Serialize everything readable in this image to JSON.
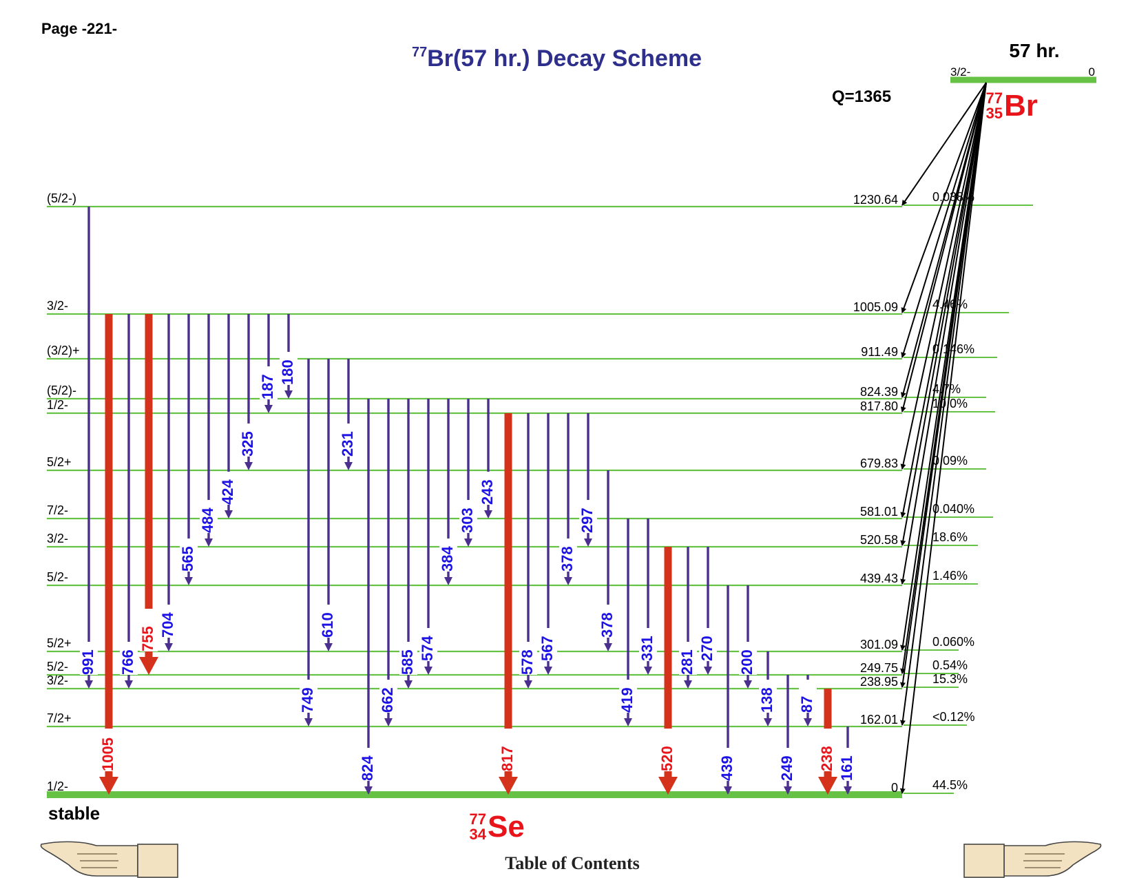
{
  "page": {
    "label": "Page -221-"
  },
  "title": {
    "mass": "77",
    "main": "Br(57 hr.) Decay Scheme"
  },
  "parent": {
    "half_life": "57 hr.",
    "spin": "3/2-",
    "energy": "0",
    "mass": "77",
    "z": "35",
    "symbol": "Br",
    "q_value": "Q=1365"
  },
  "daughter": {
    "mass": "77",
    "z": "34",
    "symbol": "Se",
    "stable_label": "stable"
  },
  "levels": [
    {
      "energy": "1230.64",
      "spin": "(5/2-)",
      "feed": "0.038%",
      "e": 1230.64
    },
    {
      "energy": "1005.09",
      "spin": "3/2-",
      "feed": "4.46%",
      "e": 1005.09
    },
    {
      "energy": "911.49",
      "spin": "(3/2)+",
      "feed": "0.146%",
      "e": 911.49
    },
    {
      "energy": "824.39",
      "spin": "(5/2)-",
      "feed": "4.7%",
      "e": 824.39
    },
    {
      "energy": "817.80",
      "spin": "1/2-",
      "feed": "10.0%",
      "e": 817.8
    },
    {
      "energy": "679.83",
      "spin": "5/2+",
      "feed": "0.09%",
      "e": 679.83
    },
    {
      "energy": "581.01",
      "spin": "7/2-",
      "feed": "0.040%",
      "e": 581.01
    },
    {
      "energy": "520.58",
      "spin": "3/2-",
      "feed": "18.6%",
      "e": 520.58
    },
    {
      "energy": "439.43",
      "spin": "5/2-",
      "feed": "1.46%",
      "e": 439.43
    },
    {
      "energy": "301.09",
      "spin": "5/2+",
      "feed": "0.060%",
      "e": 301.09
    },
    {
      "energy": "249.75",
      "spin": "5/2-",
      "feed": "0.54%",
      "e": 249.75
    },
    {
      "energy": "238.95",
      "spin": "3/2-",
      "feed": "15.3%",
      "e": 238.95
    },
    {
      "energy": "162.01",
      "spin": "7/2+",
      "feed": "<0.12%",
      "e": 162.01
    },
    {
      "energy": "0",
      "spin": "1/2-",
      "feed": "44.5%",
      "e": 0
    }
  ],
  "gammas": [
    {
      "label": "991",
      "from": 0,
      "to": 11,
      "strong": false
    },
    {
      "label": "1005",
      "from": 1,
      "to": 13,
      "strong": true
    },
    {
      "label": "766",
      "from": 1,
      "to": 11,
      "strong": false
    },
    {
      "label": "755",
      "from": 1,
      "to": 10,
      "strong": true
    },
    {
      "label": "704",
      "from": 1,
      "to": 9,
      "strong": false
    },
    {
      "label": "565",
      "from": 1,
      "to": 8,
      "strong": false
    },
    {
      "label": "484",
      "from": 1,
      "to": 7,
      "strong": false
    },
    {
      "label": "424",
      "from": 1,
      "to": 6,
      "strong": false
    },
    {
      "label": "325",
      "from": 1,
      "to": 5,
      "strong": false
    },
    {
      "label": "187",
      "from": 1,
      "to": 4,
      "strong": false
    },
    {
      "label": "180",
      "from": 1,
      "to": 3,
      "strong": false
    },
    {
      "label": "749",
      "from": 2,
      "to": 12,
      "strong": false
    },
    {
      "label": "610",
      "from": 2,
      "to": 9,
      "strong": false
    },
    {
      "label": "231",
      "from": 2,
      "to": 5,
      "strong": false
    },
    {
      "label": "824",
      "from": 3,
      "to": 13,
      "strong": false
    },
    {
      "label": "662",
      "from": 3,
      "to": 12,
      "strong": false
    },
    {
      "label": "585",
      "from": 3,
      "to": 11,
      "strong": false
    },
    {
      "label": "574",
      "from": 3,
      "to": 10,
      "strong": false
    },
    {
      "label": "384",
      "from": 3,
      "to": 8,
      "strong": false
    },
    {
      "label": "303",
      "from": 3,
      "to": 7,
      "strong": false
    },
    {
      "label": "243",
      "from": 3,
      "to": 6,
      "strong": false
    },
    {
      "label": "817",
      "from": 4,
      "to": 13,
      "strong": true
    },
    {
      "label": "578",
      "from": 4,
      "to": 11,
      "strong": false
    },
    {
      "label": "567",
      "from": 4,
      "to": 10,
      "strong": false
    },
    {
      "label": "378",
      "from": 4,
      "to": 8,
      "strong": false
    },
    {
      "label": "297",
      "from": 4,
      "to": 7,
      "strong": false
    },
    {
      "label": "378",
      "from": 5,
      "to": 9,
      "strong": false
    },
    {
      "label": "419",
      "from": 6,
      "to": 12,
      "strong": false
    },
    {
      "label": "331",
      "from": 6,
      "to": 10,
      "strong": false
    },
    {
      "label": "520",
      "from": 7,
      "to": 13,
      "strong": true
    },
    {
      "label": "281",
      "from": 7,
      "to": 11,
      "strong": false
    },
    {
      "label": "270",
      "from": 7,
      "to": 10,
      "strong": false
    },
    {
      "label": "439",
      "from": 8,
      "to": 13,
      "strong": false
    },
    {
      "label": "200",
      "from": 8,
      "to": 11,
      "strong": false
    },
    {
      "label": "138",
      "from": 9,
      "to": 12,
      "strong": false
    },
    {
      "label": "249",
      "from": 10,
      "to": 13,
      "strong": false
    },
    {
      "label": "87",
      "from": 10,
      "to": 12,
      "strong": false
    },
    {
      "label": "238",
      "from": 11,
      "to": 13,
      "strong": true
    },
    {
      "label": "161",
      "from": 12,
      "to": 13,
      "strong": false
    }
  ],
  "footer": {
    "toc": "Table of Contents"
  },
  "colors": {
    "level": "#66c244",
    "gamma": "#4b2f8f",
    "gamma_strong": "#d4321a",
    "label": "#1c12e6",
    "label_strong": "#e8141a",
    "title": "#2e2f8c",
    "isotope": "#e8141a"
  }
}
